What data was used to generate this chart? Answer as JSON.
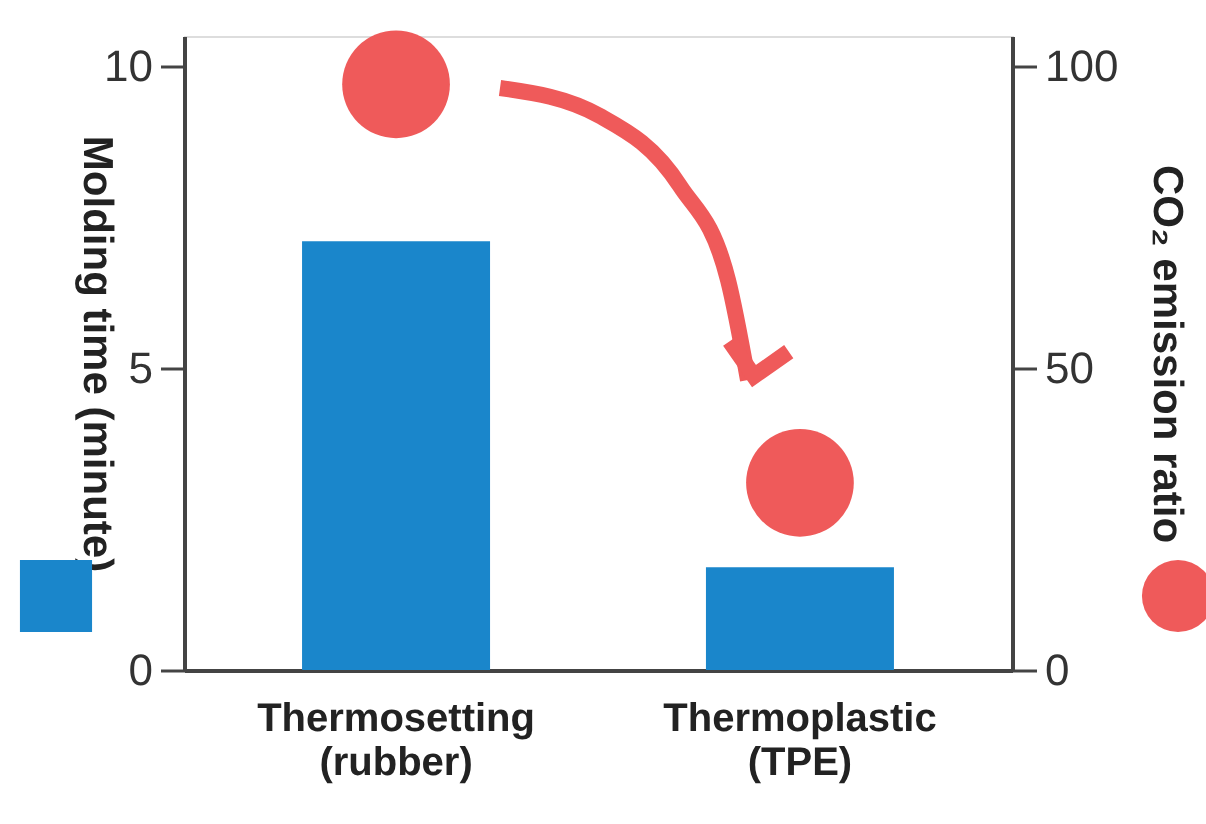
{
  "chart_data": {
    "type": "bar",
    "categories": [
      "Thermosetting\n(rubber)",
      "Thermoplastic\n(TPE)"
    ],
    "series": [
      {
        "color": "#1a86cb",
        "values": [
          7.1,
          1.7
        ]
      },
      {
        "type": "scatter",
        "axis": "y2",
        "color": "#ef5a5a",
        "values": [
          97,
          31
        ]
      }
    ],
    "ylabel": "Molding time (minute)",
    "y2label": "CO₂ emission ratio",
    "ylim": [
      0,
      10.5
    ],
    "yticks": [
      0,
      5,
      10
    ],
    "y2lim": [
      0,
      105
    ],
    "y2ticks": [
      0,
      50,
      100
    ],
    "marker": "circle"
  }
}
